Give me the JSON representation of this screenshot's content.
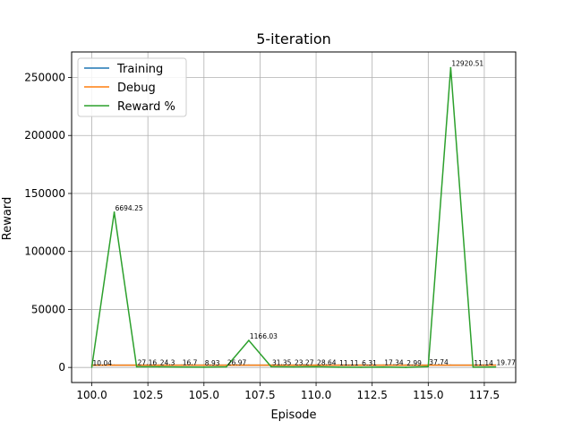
{
  "chart_data": {
    "type": "line",
    "title": "5-iteration",
    "xlabel": "Episode",
    "ylabel": "Reward",
    "xlim": [
      99.1,
      118.9
    ],
    "ylim": [
      -13000,
      272000
    ],
    "x_ticks": [
      100.0,
      102.5,
      105.0,
      107.5,
      110.0,
      112.5,
      115.0,
      117.5
    ],
    "x_tick_labels": [
      "100.0",
      "102.5",
      "105.0",
      "107.5",
      "110.0",
      "112.5",
      "115.0",
      "117.5"
    ],
    "y_ticks": [
      0,
      50000,
      100000,
      150000,
      200000,
      250000
    ],
    "y_tick_labels": [
      "0",
      "50000",
      "100000",
      "150000",
      "200000",
      "250000"
    ],
    "grid": true,
    "legend_position": "upper-left",
    "x": [
      100,
      101,
      102,
      103,
      104,
      105,
      106,
      107,
      108,
      109,
      110,
      111,
      112,
      113,
      114,
      115,
      116,
      117,
      118
    ],
    "series": [
      {
        "name": "Training",
        "color": "#1f77b4",
        "values": [
          1998,
          1998,
          1998,
          1998,
          1998,
          1998,
          1998,
          1998,
          1998,
          1998,
          1998,
          1998,
          1998,
          1998,
          1998,
          1998,
          1998,
          1998,
          1998
        ]
      },
      {
        "name": "Debug",
        "color": "#ff7f0e",
        "values": [
          2000,
          2000,
          2000,
          2000,
          2000,
          2000,
          2000,
          2000,
          2000,
          2000,
          2000,
          2000,
          2000,
          2000,
          2000,
          2000,
          2000,
          2000,
          2000
        ]
      },
      {
        "name": "Reward %",
        "color": "#2ca02c",
        "values": [
          200,
          133885,
          543,
          486,
          334,
          179,
          539,
          23321,
          627,
          465,
          573,
          222,
          126,
          347,
          60,
          755,
          258410,
          223,
          395
        ]
      }
    ],
    "annotations": [
      "10.04",
      "6694.25",
      "27.16",
      "24.3",
      "16.7",
      "8.93",
      "26.97",
      "1166.03",
      "31.35",
      "23.27",
      "28.64",
      "11.11",
      "6.31",
      "17.34",
      "2.99",
      "37.74",
      "12920.51",
      "11.14",
      "19.77"
    ]
  }
}
